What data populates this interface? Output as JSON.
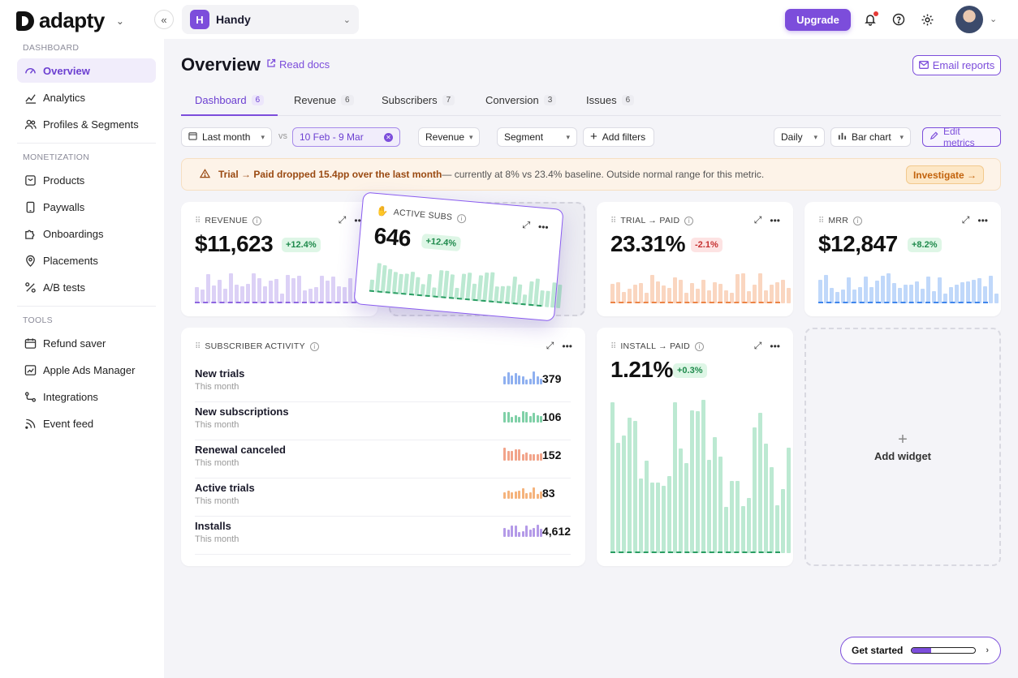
{
  "brand": {
    "name": "adapty"
  },
  "app": {
    "initial": "H",
    "name": "Handy"
  },
  "topbar": {
    "upgrade_label": "Upgrade"
  },
  "sidebar": {
    "sections": [
      {
        "title": "DASHBOARD",
        "items": [
          {
            "label": "Overview",
            "icon": "gauge-icon"
          },
          {
            "label": "Analytics",
            "icon": "analytics-icon"
          },
          {
            "label": "Profiles & Segments",
            "icon": "users-icon"
          }
        ]
      },
      {
        "title": "MONETIZATION",
        "items": [
          {
            "label": "Products",
            "icon": "products-icon"
          },
          {
            "label": "Paywalls",
            "icon": "phone-icon"
          },
          {
            "label": "Onboardings",
            "icon": "puzzle-icon"
          },
          {
            "label": "Placements",
            "icon": "pin-icon"
          },
          {
            "label": "A/B tests",
            "icon": "percent-icon"
          }
        ]
      },
      {
        "title": "TOOLS",
        "items": [
          {
            "label": "Refund saver",
            "icon": "calendar-icon"
          },
          {
            "label": "Apple Ads Manager",
            "icon": "chart-box-icon"
          },
          {
            "label": "Integrations",
            "icon": "integrations-icon"
          },
          {
            "label": "Event feed",
            "icon": "rss-icon"
          }
        ]
      }
    ]
  },
  "page": {
    "title": "Overview",
    "read_docs": "Read docs",
    "email_reports": "Email reports"
  },
  "tabs": [
    {
      "label": "Dashboard",
      "count": "6"
    },
    {
      "label": "Revenue",
      "count": "6"
    },
    {
      "label": "Subscribers",
      "count": "7"
    },
    {
      "label": "Conversion",
      "count": "3"
    },
    {
      "label": "Issues",
      "count": "6"
    }
  ],
  "filters": {
    "period": "Last month",
    "vs": "vs",
    "compare_range": "10 Feb - 9 Mar",
    "metric": "Revenue",
    "segment": "Segment",
    "add_filters": "Add filters",
    "granularity": "Daily",
    "chart_type": "Bar chart",
    "edit_metrics": "Edit metrics"
  },
  "alert": {
    "strong": "Trial → Paid dropped 15.4pp over the last month",
    "rest": " — currently at 8% vs 23.4% baseline. Outside normal range for this metric.",
    "action": "Investigate →"
  },
  "widgets": {
    "revenue": {
      "title": "REVENUE",
      "value": "$11,623",
      "delta": "+12.4%",
      "color": "#9b7be6"
    },
    "active_subs": {
      "title": "ACTIVE SUBS",
      "value": "646",
      "delta": "+12.4%",
      "color": "#3fbf7f"
    },
    "trial_paid": {
      "title": "TRIAL → PAID",
      "value": "23.31%",
      "delta": "-2.1%",
      "color": "#f08a4b"
    },
    "mrr": {
      "title": "MRR",
      "value": "$12,847",
      "delta": "+8.2%",
      "color": "#4a8ff0"
    },
    "install_paid": {
      "title": "INSTALL → PAID",
      "value": "1.21%",
      "delta": "+0.3%",
      "color": "#3fbf7f"
    },
    "activity": {
      "title": "SUBSCRIBER ACTIVITY",
      "rows": [
        {
          "label": "New trials",
          "sub": "This month",
          "value": "379",
          "color": "#8fb0f0"
        },
        {
          "label": "New subscriptions",
          "sub": "This month",
          "value": "106",
          "color": "#7fd0a7"
        },
        {
          "label": "Renewal canceled",
          "sub": "This month",
          "value": "152",
          "color": "#f2a48a"
        },
        {
          "label": "Active trials",
          "sub": "This month",
          "value": "83",
          "color": "#f5b37c"
        },
        {
          "label": "Installs",
          "sub": "This month",
          "value": "4,612",
          "color": "#b49ae8"
        }
      ]
    },
    "add_widget": "Add widget"
  },
  "get_started": {
    "label": "Get started",
    "progress": 0.3
  }
}
